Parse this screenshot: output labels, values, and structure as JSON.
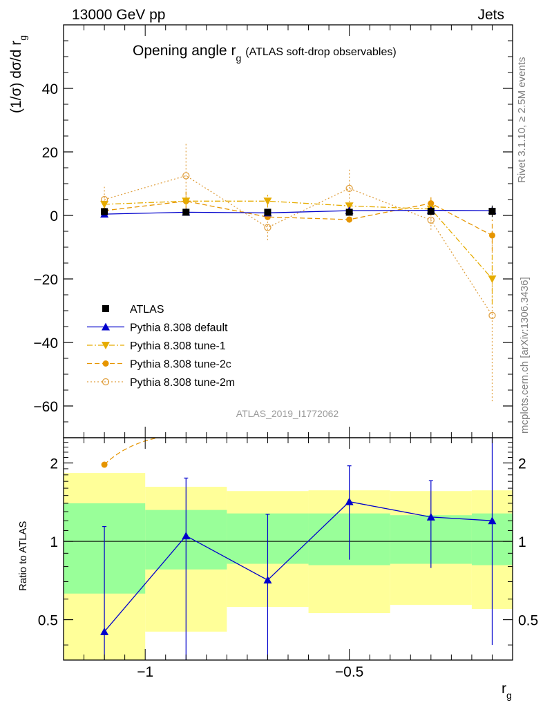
{
  "header": {
    "left": "13000 GeV pp",
    "right": "Jets"
  },
  "side_labels": {
    "top": "Rivet 3.1.10, ≥ 2.5M events",
    "bottom": "mcplots.cern.ch [arXiv:1306.3436]"
  },
  "analysis_id": "ATLAS_2019_I1772062",
  "chart_data": [
    {
      "type": "line",
      "panel": "main",
      "title": "Opening angle r",
      "title_subscript": "g",
      "title_suffix": "(ATLAS soft-drop observables)",
      "ylabel": "(1/σ) dσ/d r",
      "ylabel_subscript": "g",
      "xlabel": "r",
      "xlabel_subscript": "g",
      "xlim": [
        -1.2,
        -0.1
      ],
      "ylim": [
        -70,
        60
      ],
      "y_ticks": [
        -60,
        -40,
        -20,
        0,
        20,
        40
      ],
      "y_tick_labels": [
        "−60",
        "−40",
        "−20",
        "0",
        "20",
        "40"
      ],
      "x": [
        -1.1,
        -0.9,
        -0.7,
        -0.5,
        -0.3,
        -0.15
      ],
      "x_bins": [
        [
          -1.2,
          -1.0
        ],
        [
          -1.0,
          -0.8
        ],
        [
          -0.8,
          -0.6
        ],
        [
          -0.6,
          -0.4
        ],
        [
          -0.4,
          -0.2
        ],
        [
          -0.2,
          -0.1
        ]
      ],
      "legend_position": "lower-left",
      "series": [
        {
          "name": "ATLAS",
          "color": "#000000",
          "marker": "square",
          "line": "none",
          "values": [
            1.2,
            1.0,
            1.0,
            1.0,
            1.3,
            1.3
          ],
          "errors": [
            0.4,
            0.4,
            0.4,
            0.4,
            0.4,
            1.8
          ]
        },
        {
          "name": "Pythia 8.308 default",
          "color": "#0000cc",
          "marker": "triangle-up",
          "line": "solid",
          "values": [
            0.4,
            1.0,
            0.8,
            1.5,
            1.6,
            1.5
          ],
          "errors": [
            0.3,
            0.3,
            0.3,
            0.4,
            0.4,
            0.8
          ]
        },
        {
          "name": "Pythia 8.308 tune-1",
          "color": "#e6ac00",
          "marker": "triangle-down",
          "line": "dashdot",
          "values": [
            3.5,
            4.5,
            4.5,
            3.0,
            2.0,
            -20.0
          ],
          "errors": [
            1.0,
            1.5,
            2.0,
            1.0,
            1.5,
            8.0
          ]
        },
        {
          "name": "Pythia 8.308 tune-2c",
          "color": "#e69500",
          "marker": "circle",
          "line": "dashed",
          "values": [
            1.5,
            4.5,
            -0.5,
            -1.3,
            3.8,
            -6.3
          ],
          "errors": [
            0.8,
            3.0,
            1.0,
            1.0,
            2.0,
            5.0
          ]
        },
        {
          "name": "Pythia 8.308 tune-2m",
          "color": "#e0a040",
          "marker": "circle-open",
          "line": "dotted",
          "values": [
            5.0,
            12.5,
            -3.8,
            8.5,
            -1.5,
            -31.5
          ],
          "errors": [
            4.0,
            10.0,
            4.0,
            6.5,
            3.0,
            27.0
          ]
        }
      ]
    },
    {
      "type": "line",
      "panel": "ratio",
      "ylabel": "Ratio to ATLAS",
      "ylim": [
        0.35,
        2.5
      ],
      "y_ticks": [
        0.5,
        1,
        2
      ],
      "y_tick_labels": [
        "0.5",
        "1",
        "2"
      ],
      "x_ticks": [
        -1.0,
        -0.5
      ],
      "x_tick_labels": [
        "−1",
        "−0.5"
      ],
      "reference": 1,
      "bands": {
        "inner": {
          "color": "#99ff99",
          "lower": [
            0.63,
            0.78,
            0.82,
            0.81,
            0.82,
            0.81
          ],
          "upper": [
            1.4,
            1.32,
            1.28,
            1.28,
            1.26,
            1.28
          ]
        },
        "outer": {
          "color": "#ffff99",
          "lower": [
            0.3,
            0.45,
            0.56,
            0.53,
            0.57,
            0.55
          ],
          "upper": [
            1.83,
            1.62,
            1.56,
            1.57,
            1.56,
            1.57
          ]
        }
      },
      "series": [
        {
          "name": "Pythia 8.308 default",
          "color": "#0000cc",
          "values": [
            0.45,
            1.05,
            0.71,
            1.42,
            1.24,
            1.2
          ],
          "err_low": [
            0.2,
            0.75,
            0.45,
            0.57,
            0.45,
            0.8
          ],
          "err_high": [
            0.69,
            0.7,
            0.56,
            0.53,
            0.47,
            1.5
          ]
        },
        {
          "name": "Pythia 8.308 tune-2c",
          "color": "#e69500",
          "values": [
            1.97
          ]
        }
      ]
    }
  ]
}
